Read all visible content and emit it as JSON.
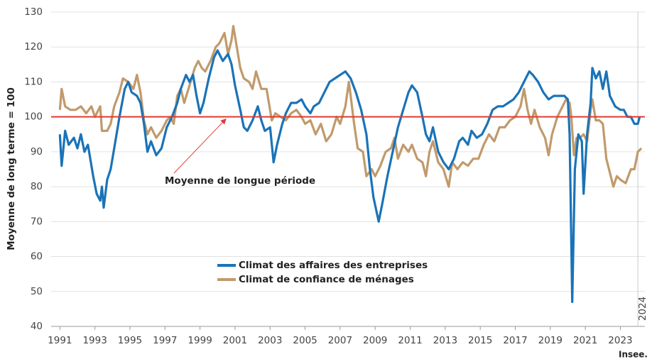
{
  "chart_data": {
    "type": "line",
    "y_label": "Moyenne de long terme = 100",
    "source": "Insee.",
    "xlim": [
      1990.5,
      2024.4
    ],
    "xticks": [
      1991,
      1993,
      1995,
      1997,
      1999,
      2001,
      2003,
      2005,
      2007,
      2009,
      2011,
      2013,
      2015,
      2017,
      2019,
      2021,
      2023
    ],
    "ylim": [
      40,
      130
    ],
    "yticks": [
      40,
      50,
      60,
      70,
      80,
      90,
      100,
      110,
      120,
      130
    ],
    "grid": true,
    "hline": {
      "value": 100,
      "color": "#e03a2f",
      "label": "Moyenne de longue période"
    },
    "vline": {
      "value": 2024,
      "label": "2024"
    },
    "series": [
      {
        "name": "Climat des affaires des entreprises",
        "color": "#1a73b8",
        "x": [
          1991.0,
          1991.1,
          1991.3,
          1991.5,
          1991.8,
          1992.0,
          1992.2,
          1992.4,
          1992.6,
          1992.9,
          1993.1,
          1993.3,
          1993.4,
          1993.5,
          1993.7,
          1993.9,
          1994.1,
          1994.4,
          1994.7,
          1994.9,
          1995.1,
          1995.4,
          1995.6,
          1995.8,
          1996.0,
          1996.2,
          1996.5,
          1996.8,
          1997.1,
          1997.4,
          1997.7,
          1997.9,
          1998.2,
          1998.4,
          1998.6,
          1998.8,
          1999.0,
          1999.2,
          1999.5,
          1999.8,
          2000.0,
          2000.3,
          2000.6,
          2000.8,
          2001.0,
          2001.3,
          2001.5,
          2001.7,
          2002.0,
          2002.3,
          2002.5,
          2002.7,
          2003.0,
          2003.2,
          2003.4,
          2003.7,
          2003.9,
          2004.2,
          2004.5,
          2004.8,
          2005.0,
          2005.3,
          2005.5,
          2005.8,
          2006.1,
          2006.4,
          2006.7,
          2007.0,
          2007.3,
          2007.6,
          2007.9,
          2008.2,
          2008.5,
          2008.7,
          2008.9,
          2009.2,
          2009.4,
          2009.7,
          2010.0,
          2010.3,
          2010.6,
          2010.9,
          2011.1,
          2011.4,
          2011.7,
          2011.9,
          2012.1,
          2012.3,
          2012.6,
          2012.9,
          2013.2,
          2013.5,
          2013.8,
          2014.0,
          2014.3,
          2014.5,
          2014.8,
          2015.1,
          2015.4,
          2015.7,
          2016.0,
          2016.3,
          2016.6,
          2016.9,
          2017.2,
          2017.5,
          2017.8,
          2018.0,
          2018.3,
          2018.6,
          2018.9,
          2019.2,
          2019.5,
          2019.8,
          2020.0,
          2020.1,
          2020.25,
          2020.4,
          2020.6,
          2020.8,
          2020.9,
          2021.1,
          2021.3,
          2021.4,
          2021.6,
          2021.8,
          2022.0,
          2022.2,
          2022.4,
          2022.7,
          2023.0,
          2023.2,
          2023.4,
          2023.6,
          2023.8,
          2024.0,
          2024.1
        ],
        "values": [
          95,
          86,
          96,
          92,
          94,
          91,
          95,
          90,
          92,
          83,
          78,
          76,
          80,
          74,
          82,
          85,
          91,
          100,
          108,
          110,
          107,
          106,
          104,
          98,
          90,
          93,
          89,
          91,
          97,
          100,
          104,
          108,
          112,
          110,
          112,
          106,
          101,
          104,
          111,
          117,
          119,
          116,
          118,
          115,
          109,
          102,
          97,
          96,
          99,
          103,
          99,
          96,
          97,
          87,
          92,
          98,
          101,
          104,
          104,
          105,
          103,
          101,
          103,
          104,
          107,
          110,
          111,
          112,
          113,
          111,
          107,
          102,
          95,
          85,
          77,
          70,
          75,
          83,
          90,
          97,
          102,
          107,
          109,
          107,
          100,
          95,
          93,
          97,
          90,
          87,
          85,
          88,
          93,
          94,
          92,
          96,
          94,
          95,
          98,
          102,
          103,
          103,
          104,
          105,
          107,
          110,
          113,
          112,
          110,
          107,
          105,
          106,
          106,
          106,
          105,
          95,
          47,
          85,
          95,
          93,
          78,
          95,
          104,
          114,
          111,
          113,
          108,
          113,
          106,
          103,
          102,
          102,
          100,
          100,
          98,
          98,
          100
        ]
      },
      {
        "name": "Climat de confiance de ménages",
        "color": "#c19a6b",
        "x": [
          1991.0,
          1991.1,
          1991.3,
          1991.6,
          1991.9,
          1992.2,
          1992.5,
          1992.8,
          1993.0,
          1993.3,
          1993.4,
          1993.7,
          1993.9,
          1994.1,
          1994.4,
          1994.6,
          1994.9,
          1995.2,
          1995.4,
          1995.6,
          1995.8,
          1996.0,
          1996.2,
          1996.5,
          1996.8,
          1997.1,
          1997.3,
          1997.5,
          1997.7,
          1997.9,
          1998.1,
          1998.4,
          1998.7,
          1998.9,
          1999.1,
          1999.3,
          1999.6,
          1999.9,
          2000.1,
          2000.4,
          2000.6,
          2000.8,
          2000.9,
          2001.1,
          2001.3,
          2001.5,
          2001.8,
          2002.0,
          2002.2,
          2002.5,
          2002.8,
          2003.1,
          2003.3,
          2003.6,
          2003.9,
          2004.2,
          2004.5,
          2004.8,
          2005.0,
          2005.3,
          2005.6,
          2005.9,
          2006.2,
          2006.5,
          2006.8,
          2007.0,
          2007.3,
          2007.5,
          2007.6,
          2007.8,
          2008.0,
          2008.3,
          2008.5,
          2008.8,
          2009.0,
          2009.3,
          2009.6,
          2009.9,
          2010.1,
          2010.3,
          2010.6,
          2010.9,
          2011.1,
          2011.4,
          2011.7,
          2011.9,
          2012.1,
          2012.3,
          2012.6,
          2012.9,
          2013.2,
          2013.4,
          2013.7,
          2014.0,
          2014.3,
          2014.6,
          2014.9,
          2015.2,
          2015.5,
          2015.8,
          2016.1,
          2016.4,
          2016.7,
          2017.0,
          2017.3,
          2017.5,
          2017.7,
          2017.9,
          2018.1,
          2018.4,
          2018.7,
          2018.9,
          2019.1,
          2019.4,
          2019.7,
          2019.9,
          2020.1,
          2020.2,
          2020.35,
          2020.5,
          2020.7,
          2020.9,
          2021.1,
          2021.3,
          2021.4,
          2021.6,
          2021.8,
          2022.0,
          2022.2,
          2022.4,
          2022.6,
          2022.8,
          2023.0,
          2023.3,
          2023.6,
          2023.8,
          2024.0,
          2024.2
        ],
        "values": [
          102,
          108,
          103,
          102,
          102,
          103,
          101,
          103,
          100,
          103,
          96,
          96,
          98,
          103,
          107,
          111,
          110,
          108,
          112,
          107,
          99,
          95,
          97,
          94,
          96,
          99,
          100,
          98,
          106,
          108,
          104,
          109,
          114,
          116,
          114,
          113,
          116,
          120,
          121,
          124,
          118,
          122,
          126,
          120,
          114,
          111,
          110,
          108,
          113,
          108,
          108,
          99,
          101,
          100,
          99,
          101,
          102,
          100,
          98,
          99,
          95,
          98,
          93,
          95,
          100,
          98,
          103,
          110,
          106,
          98,
          91,
          90,
          83,
          85,
          83,
          86,
          90,
          91,
          94,
          88,
          92,
          90,
          92,
          88,
          87,
          83,
          90,
          93,
          87,
          85,
          80,
          87,
          85,
          87,
          86,
          88,
          88,
          92,
          95,
          93,
          97,
          97,
          99,
          100,
          103,
          108,
          102,
          98,
          102,
          97,
          94,
          89,
          95,
          100,
          103,
          105,
          104,
          100,
          89,
          94,
          94,
          95,
          93,
          102,
          105,
          99,
          99,
          98,
          88,
          84,
          80,
          83,
          82,
          81,
          85,
          85,
          90,
          91
        ]
      }
    ]
  }
}
